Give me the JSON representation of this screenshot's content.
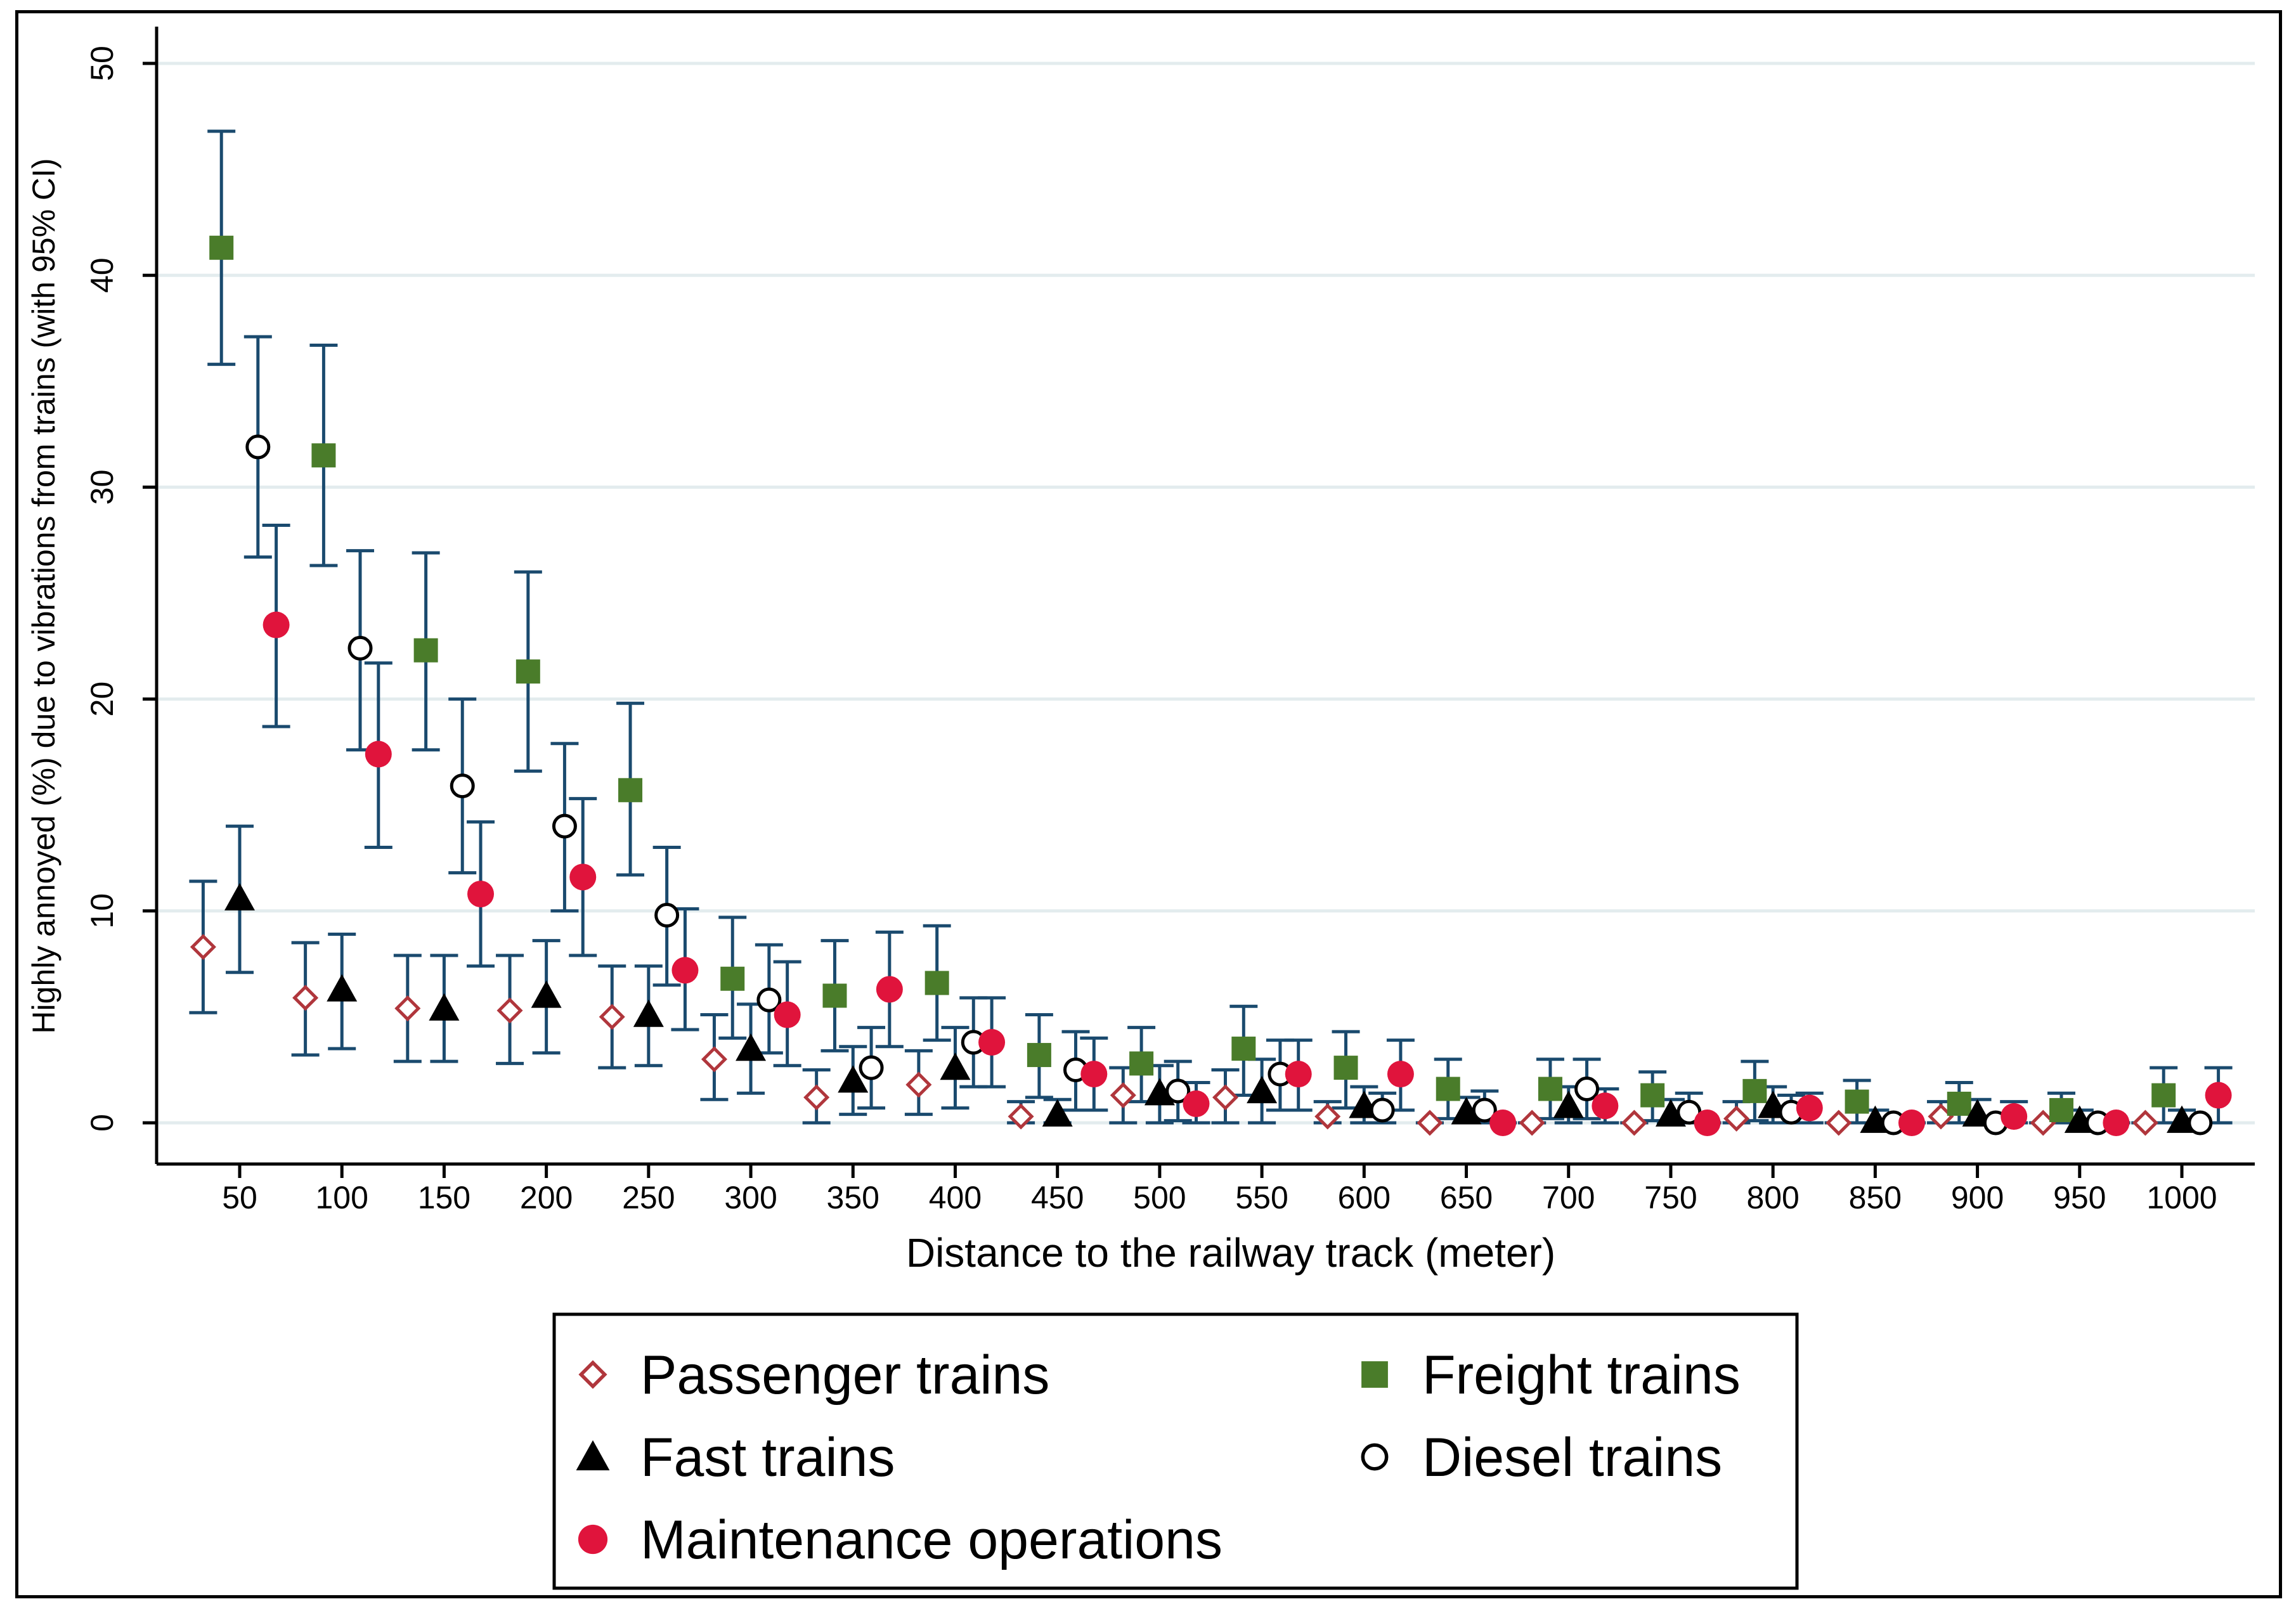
{
  "chart_data": {
    "type": "scatter",
    "title": "",
    "xlabel": "Distance to the railway track (meter)",
    "ylabel": "Highly annoyed (%) due to vibrations from trains (with 95% CI)",
    "xlim": [
      25,
      1050
    ],
    "ylim": [
      0,
      50
    ],
    "xticks": [
      50,
      100,
      150,
      200,
      250,
      300,
      350,
      400,
      450,
      500,
      550,
      600,
      650,
      700,
      750,
      800,
      850,
      900,
      950,
      1000
    ],
    "yticks": [
      0,
      10,
      20,
      30,
      40,
      50
    ],
    "grid": true,
    "legend_position": "bottom",
    "error_bars": "95% CI",
    "colors": {
      "errorbar": "#1a4a6e",
      "passenger": "#b0363c",
      "freight": "#4a7c2a",
      "fast": "#000000",
      "diesel": "#000000",
      "maintenance": "#e0143c",
      "grid": "#e3ecee"
    },
    "series": [
      {
        "name": "Passenger trains",
        "key": "passenger",
        "marker": "diamond-hollow",
        "offset": -18,
        "values": [
          8.3,
          5.9,
          5.4,
          5.3,
          5.0,
          3.0,
          1.2,
          1.8,
          0.3,
          1.3,
          1.2,
          0.3,
          0.0,
          0.0,
          0.0,
          0.2,
          0.0,
          0.3,
          0.0,
          0.0
        ],
        "ci_low": [
          5.2,
          3.2,
          2.9,
          2.8,
          2.6,
          1.1,
          0.0,
          0.4,
          0.0,
          0.0,
          0.0,
          0.0,
          0.0,
          0.0,
          0.0,
          0.0,
          0.0,
          0.0,
          0.0,
          0.0
        ],
        "ci_high": [
          11.4,
          8.5,
          7.9,
          7.9,
          7.4,
          5.1,
          2.5,
          3.4,
          1.0,
          2.6,
          2.5,
          1.0,
          0.0,
          0.0,
          0.0,
          1.0,
          0.0,
          1.0,
          0.0,
          0.0
        ]
      },
      {
        "name": "Freight trains",
        "key": "freight",
        "marker": "square",
        "offset": -9,
        "values": [
          41.3,
          31.5,
          22.3,
          21.3,
          15.7,
          6.8,
          6.0,
          6.6,
          3.2,
          2.8,
          3.5,
          2.6,
          1.6,
          1.6,
          1.3,
          1.5,
          1.0,
          0.9,
          0.6,
          1.3
        ],
        "ci_low": [
          35.8,
          26.3,
          17.6,
          16.6,
          11.7,
          4.0,
          3.4,
          3.9,
          1.2,
          1.0,
          1.3,
          0.7,
          0.2,
          0.2,
          0.1,
          0.1,
          0.0,
          0.0,
          0.0,
          0.0
        ],
        "ci_high": [
          46.8,
          36.7,
          26.9,
          26.0,
          19.8,
          9.7,
          8.6,
          9.3,
          5.1,
          4.5,
          5.5,
          4.3,
          3.0,
          3.0,
          2.4,
          2.9,
          2.0,
          1.9,
          1.4,
          2.6
        ]
      },
      {
        "name": "Fast trains",
        "key": "fast",
        "marker": "triangle",
        "offset": 0,
        "values": [
          10.6,
          6.3,
          5.4,
          6.0,
          5.1,
          3.5,
          2.0,
          2.6,
          0.4,
          1.4,
          1.5,
          0.8,
          0.5,
          0.8,
          0.4,
          0.8,
          0.1,
          0.4,
          0.1,
          0.1
        ],
        "ci_low": [
          7.1,
          3.5,
          2.9,
          3.3,
          2.7,
          1.4,
          0.4,
          0.7,
          0.0,
          0.0,
          0.0,
          0.0,
          0.0,
          0.0,
          0.0,
          0.0,
          0.0,
          0.0,
          0.0,
          0.0
        ],
        "ci_high": [
          14.0,
          8.9,
          7.9,
          8.6,
          7.4,
          5.6,
          3.6,
          4.5,
          1.1,
          2.7,
          3.0,
          1.7,
          1.2,
          1.7,
          1.1,
          1.7,
          0.6,
          1.1,
          0.6,
          0.6
        ]
      },
      {
        "name": "Diesel trains",
        "key": "diesel",
        "marker": "circle-hollow",
        "offset": 9,
        "values": [
          31.9,
          22.4,
          15.9,
          14.0,
          9.8,
          5.8,
          2.6,
          3.8,
          2.5,
          1.5,
          2.3,
          0.6,
          0.6,
          1.6,
          0.5,
          0.5,
          0.0,
          0.0,
          0.0,
          0.0
        ],
        "ci_low": [
          26.7,
          17.6,
          11.8,
          10.0,
          6.5,
          3.3,
          0.7,
          1.7,
          0.6,
          0.1,
          0.6,
          0.0,
          0.0,
          0.2,
          0.0,
          0.0,
          0.0,
          0.0,
          0.0,
          0.0
        ],
        "ci_high": [
          37.1,
          27.0,
          20.0,
          17.9,
          13.0,
          8.4,
          4.5,
          5.9,
          4.3,
          2.9,
          3.9,
          1.4,
          1.5,
          3.0,
          1.4,
          1.3,
          0.0,
          0.0,
          0.0,
          0.0
        ]
      },
      {
        "name": "Maintenance operations",
        "key": "maintenance",
        "marker": "circle",
        "offset": 18,
        "values": [
          23.5,
          17.4,
          10.8,
          11.6,
          7.2,
          5.1,
          6.3,
          3.8,
          2.3,
          0.9,
          2.3,
          2.3,
          0.0,
          0.8,
          0.0,
          0.7,
          0.0,
          0.3,
          0.0,
          1.3
        ],
        "ci_low": [
          18.7,
          13.0,
          7.4,
          7.9,
          4.4,
          2.7,
          3.6,
          1.7,
          0.6,
          0.0,
          0.6,
          0.6,
          0.0,
          0.0,
          0.0,
          0.0,
          0.0,
          0.0,
          0.0,
          0.0
        ],
        "ci_high": [
          28.2,
          21.7,
          14.2,
          15.3,
          10.1,
          7.6,
          9.0,
          5.9,
          4.0,
          1.9,
          3.9,
          3.9,
          0.0,
          1.6,
          0.0,
          1.4,
          0.0,
          1.0,
          0.0,
          2.6
        ]
      }
    ],
    "legend": [
      {
        "label": "Passenger trains",
        "key": "passenger",
        "marker": "diamond-hollow"
      },
      {
        "label": "Freight trains",
        "key": "freight",
        "marker": "square"
      },
      {
        "label": "Fast trains",
        "key": "fast",
        "marker": "triangle"
      },
      {
        "label": "Diesel trains",
        "key": "diesel",
        "marker": "circle-hollow"
      },
      {
        "label": "Maintenance operations",
        "key": "maintenance",
        "marker": "circle"
      }
    ]
  }
}
